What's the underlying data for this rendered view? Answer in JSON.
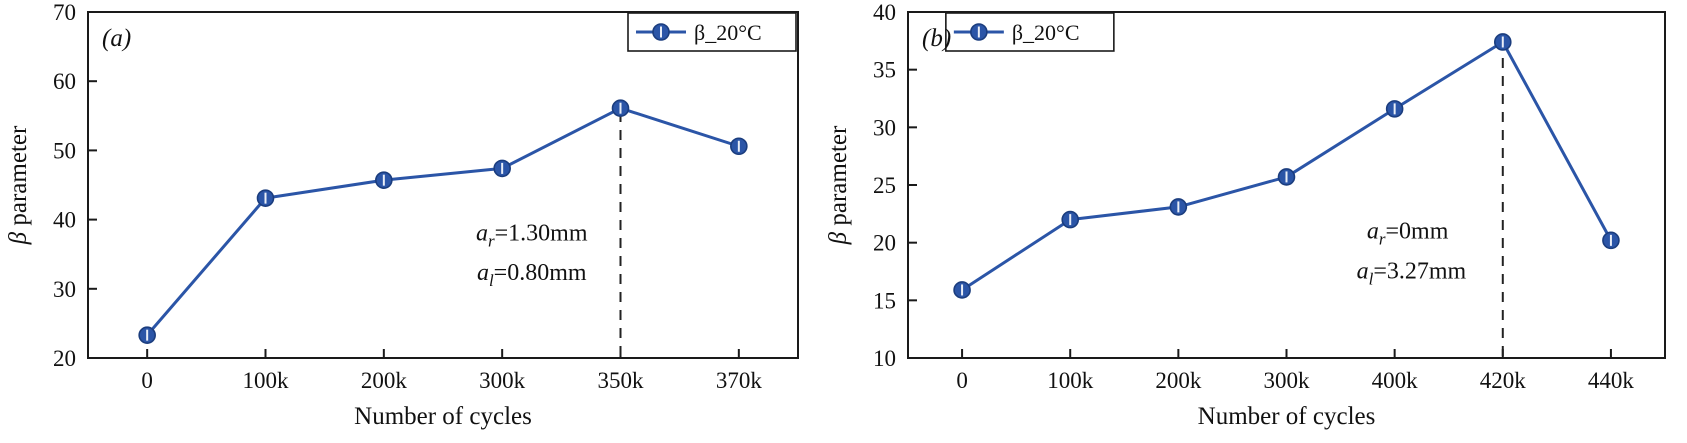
{
  "figure": {
    "background": "#ffffff"
  },
  "chart_data": [
    {
      "type": "line",
      "panel_label": "(a)",
      "xlabel": "Number of cycles",
      "ylabel": {
        "italic": "β",
        "normal": " parameter"
      },
      "categories": [
        "0",
        "100k",
        "200k",
        "300k",
        "350k",
        "370k"
      ],
      "series": [
        {
          "name": "β_20°C",
          "values": [
            23.3,
            43.1,
            45.7,
            47.4,
            56.1,
            50.6
          ]
        }
      ],
      "ylim": [
        20,
        70
      ],
      "yticks": [
        20,
        30,
        40,
        50,
        60,
        70
      ],
      "grid": false,
      "dashed_line_category_index": 4,
      "legend": {
        "label": "β_20°C",
        "align": "right"
      },
      "annotations": [
        {
          "pre": "a",
          "sub": "r",
          "post": "=1.30mm",
          "fx": 0.625,
          "fy": 0.66
        },
        {
          "pre": "a",
          "sub": "l",
          "post": "=0.80mm",
          "fx": 0.625,
          "fy": 0.775
        }
      ],
      "line_color": "#2b55a7",
      "marker_edge_color": "#1b3d7e"
    },
    {
      "type": "line",
      "panel_label": "(b)",
      "xlabel": "Number of cycles",
      "ylabel": {
        "italic": "β",
        "normal": " parameter"
      },
      "categories": [
        "0",
        "100k",
        "200k",
        "300k",
        "400k",
        "420k",
        "440k"
      ],
      "series": [
        {
          "name": "β_20°C",
          "values": [
            15.9,
            22.0,
            23.1,
            25.7,
            31.6,
            37.4,
            20.2
          ]
        }
      ],
      "ylim": [
        10,
        40
      ],
      "yticks": [
        10,
        15,
        20,
        25,
        30,
        35,
        40
      ],
      "grid": false,
      "dashed_line_category_index": 5,
      "legend": {
        "label": "β_20°C",
        "align": "left"
      },
      "annotations": [
        {
          "pre": "a",
          "sub": "r",
          "post": "=0mm",
          "fx": 0.66,
          "fy": 0.655
        },
        {
          "pre": "a",
          "sub": "l",
          "post": "=3.27mm",
          "fx": 0.665,
          "fy": 0.77
        }
      ],
      "line_color": "#2b55a7",
      "marker_edge_color": "#1b3d7e"
    }
  ]
}
